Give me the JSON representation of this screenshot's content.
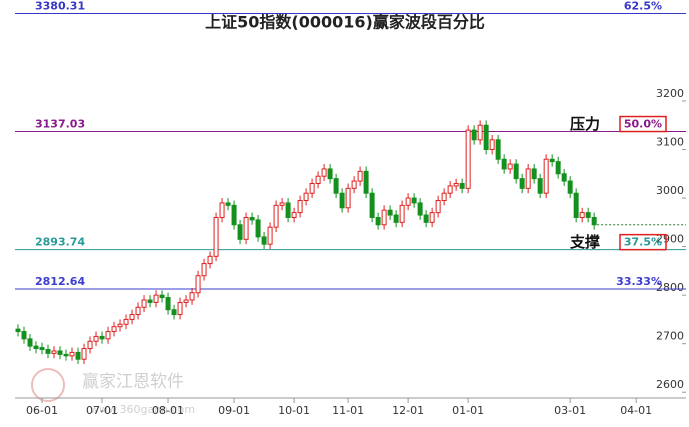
{
  "chart_data": {
    "type": "candlestick",
    "title": "上证50指数(000016)赢家波段百分比",
    "xlim": [
      -0.5,
      111.3
    ],
    "ylim": [
      2584,
      3408
    ],
    "xticks": [
      {
        "value": 4,
        "label": "06-01"
      },
      {
        "value": 14,
        "label": "07-01"
      },
      {
        "value": 25,
        "label": "08-01"
      },
      {
        "value": 36,
        "label": "09-01"
      },
      {
        "value": 46,
        "label": "10-01"
      },
      {
        "value": 55,
        "label": "11-01"
      },
      {
        "value": 65,
        "label": "12-01"
      },
      {
        "value": 75,
        "label": "01-01"
      },
      {
        "value": 92,
        "label": "03-01"
      },
      {
        "value": 103,
        "label": "04-01"
      }
    ],
    "yticks": [
      3200,
      3100,
      3000,
      2900,
      2800,
      2700,
      2600
    ],
    "up_color": "#e02020",
    "down_color": "#14901e",
    "open": [
      2730,
      2725,
      2710,
      2695,
      2692,
      2688,
      2680,
      2685,
      2678,
      2675,
      2682,
      2668,
      2690,
      2705,
      2715,
      2710,
      2725,
      2735,
      2740,
      2750,
      2760,
      2775,
      2790,
      2785,
      2800,
      2795,
      2770,
      2760,
      2785,
      2790,
      2805,
      2840,
      2865,
      2880,
      2960,
      2990,
      2985,
      2945,
      2915,
      2960,
      2955,
      2920,
      2905,
      2940,
      2985,
      2990,
      2960,
      2970,
      2995,
      3010,
      3030,
      3045,
      3060,
      3040,
      3010,
      2980,
      3020,
      3035,
      3055,
      3010,
      2960,
      2945,
      2975,
      2965,
      2950,
      2985,
      3000,
      2990,
      2965,
      2950,
      2970,
      2995,
      3010,
      3025,
      3030,
      3020,
      3140,
      3120,
      3150,
      3100,
      3120,
      3080,
      3060,
      3070,
      3040,
      3020,
      3060,
      3040,
      3010,
      3080,
      3075,
      3050,
      3035,
      3010,
      2960,
      2970,
      2960
    ],
    "high": [
      2740,
      2735,
      2720,
      2705,
      2702,
      2698,
      2695,
      2695,
      2688,
      2692,
      2692,
      2700,
      2715,
      2725,
      2725,
      2735,
      2745,
      2750,
      2760,
      2770,
      2785,
      2800,
      2800,
      2810,
      2810,
      2805,
      2780,
      2795,
      2800,
      2815,
      2850,
      2875,
      2890,
      2970,
      3000,
      3000,
      2995,
      2955,
      2970,
      2970,
      2965,
      2930,
      2950,
      2995,
      3000,
      3000,
      2980,
      3005,
      3020,
      3040,
      3055,
      3070,
      3070,
      3050,
      3020,
      3030,
      3045,
      3065,
      3065,
      3020,
      2970,
      2985,
      2985,
      2975,
      2995,
      3010,
      3010,
      3000,
      2975,
      2980,
      3005,
      3020,
      3035,
      3040,
      3040,
      3150,
      3150,
      3160,
      3160,
      3130,
      3130,
      3090,
      3080,
      3080,
      3050,
      3070,
      3070,
      3050,
      3090,
      3090,
      3085,
      3060,
      3045,
      3020,
      2980,
      2980,
      2970
    ],
    "low": [
      2715,
      2700,
      2685,
      2680,
      2678,
      2670,
      2670,
      2668,
      2665,
      2665,
      2658,
      2658,
      2680,
      2695,
      2700,
      2700,
      2715,
      2725,
      2730,
      2740,
      2750,
      2765,
      2775,
      2775,
      2785,
      2760,
      2750,
      2750,
      2775,
      2780,
      2795,
      2830,
      2855,
      2870,
      2950,
      2975,
      2935,
      2905,
      2905,
      2945,
      2910,
      2895,
      2895,
      2930,
      2975,
      2950,
      2950,
      2960,
      2985,
      3000,
      3020,
      3035,
      3030,
      3000,
      2970,
      2970,
      3010,
      3025,
      3000,
      2950,
      2935,
      2935,
      2955,
      2940,
      2940,
      2975,
      2980,
      2955,
      2940,
      2940,
      2960,
      2985,
      3000,
      3015,
      3010,
      3010,
      3110,
      3110,
      3090,
      3090,
      3070,
      3050,
      3050,
      3030,
      3010,
      3010,
      3030,
      3000,
      3000,
      3065,
      3040,
      3025,
      3000,
      2950,
      2950,
      2950,
      2935
    ],
    "close": [
      2725,
      2710,
      2695,
      2690,
      2688,
      2680,
      2685,
      2678,
      2675,
      2682,
      2668,
      2690,
      2705,
      2715,
      2710,
      2725,
      2735,
      2740,
      2750,
      2760,
      2775,
      2790,
      2785,
      2800,
      2795,
      2770,
      2760,
      2785,
      2790,
      2805,
      2840,
      2865,
      2880,
      2960,
      2990,
      2985,
      2945,
      2915,
      2960,
      2955,
      2920,
      2905,
      2940,
      2985,
      2990,
      2960,
      2970,
      2995,
      3010,
      3030,
      3045,
      3060,
      3040,
      3010,
      2980,
      3020,
      3035,
      3055,
      3010,
      2960,
      2945,
      2975,
      2965,
      2950,
      2985,
      3000,
      2990,
      2965,
      2950,
      2970,
      2995,
      3010,
      3025,
      3030,
      3020,
      3140,
      3120,
      3150,
      3100,
      3120,
      3080,
      3060,
      3070,
      3040,
      3020,
      3060,
      3040,
      3010,
      3080,
      3075,
      3050,
      3035,
      3010,
      2960,
      2970,
      2960,
      2945
    ],
    "levels": [
      {
        "value": 3380.31,
        "percent": "62.5%",
        "color": "#3636c8",
        "boxed": false
      },
      {
        "value": 3137.03,
        "percent": "50.0%",
        "color": "#8a1a8a",
        "boxed": true,
        "annotation": "压力"
      },
      {
        "value": 2893.74,
        "percent": "37.5%",
        "color": "#2a9a9a",
        "boxed": true,
        "annotation": "支撑"
      },
      {
        "value": 2812.64,
        "percent": "33.33%",
        "color": "#3c3cd0",
        "boxed": false
      }
    ],
    "watermark": "赢家江恩软件",
    "watermark_url": "www.360gann.com"
  }
}
